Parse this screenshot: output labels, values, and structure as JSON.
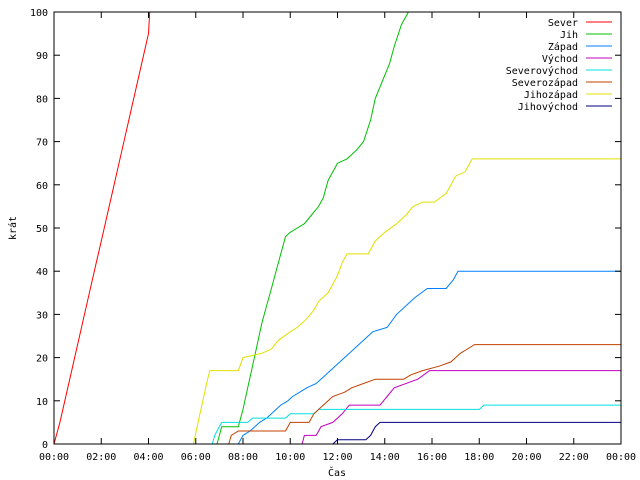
{
  "chart_data": {
    "type": "line",
    "title": "",
    "xlabel": "Čas",
    "ylabel": "krát",
    "xlim": [
      0,
      24
    ],
    "ylim": [
      0,
      100
    ],
    "x_ticks": [
      "00:00",
      "02:00",
      "04:00",
      "06:00",
      "08:00",
      "10:00",
      "12:00",
      "14:00",
      "16:00",
      "18:00",
      "20:00",
      "22:00",
      "00:00"
    ],
    "y_ticks": [
      "0",
      "10",
      "20",
      "30",
      "40",
      "50",
      "60",
      "70",
      "80",
      "90",
      "100"
    ],
    "grid": false,
    "legend_position": "top-right",
    "x_unit": "hours since 00:00",
    "series": [
      {
        "name": "Sever",
        "color": "#ff0000",
        "points": [
          [
            0,
            0
          ],
          [
            0.25,
            5
          ],
          [
            0.5,
            11
          ],
          [
            0.75,
            17
          ],
          [
            1,
            23
          ],
          [
            1.25,
            29
          ],
          [
            1.5,
            35
          ],
          [
            1.75,
            41
          ],
          [
            2,
            47
          ],
          [
            2.25,
            53
          ],
          [
            2.5,
            59
          ],
          [
            2.75,
            65
          ],
          [
            3,
            71
          ],
          [
            3.25,
            77
          ],
          [
            3.5,
            83
          ],
          [
            3.75,
            89
          ],
          [
            4,
            95
          ],
          [
            4.05,
            100
          ]
        ]
      },
      {
        "name": "Jih",
        "color": "#00c000",
        "points": [
          [
            0,
            0
          ],
          [
            6.9,
            0
          ],
          [
            7.0,
            2
          ],
          [
            7.1,
            4
          ],
          [
            7.8,
            4
          ],
          [
            8.0,
            8
          ],
          [
            8.2,
            13
          ],
          [
            8.4,
            18
          ],
          [
            8.6,
            23
          ],
          [
            8.8,
            28
          ],
          [
            9.0,
            32
          ],
          [
            9.2,
            36
          ],
          [
            9.5,
            42
          ],
          [
            9.8,
            48
          ],
          [
            10.0,
            49
          ],
          [
            10.3,
            50
          ],
          [
            10.6,
            51
          ],
          [
            10.9,
            53
          ],
          [
            11.2,
            55
          ],
          [
            11.4,
            57
          ],
          [
            11.6,
            61
          ],
          [
            12.0,
            65
          ],
          [
            12.4,
            66
          ],
          [
            12.8,
            68
          ],
          [
            13.1,
            70
          ],
          [
            13.4,
            75
          ],
          [
            13.6,
            80
          ],
          [
            13.9,
            84
          ],
          [
            14.2,
            88
          ],
          [
            14.4,
            92
          ],
          [
            14.7,
            97
          ],
          [
            15.0,
            100
          ]
        ]
      },
      {
        "name": "Západ",
        "color": "#0080ff",
        "points": [
          [
            0,
            0
          ],
          [
            7.8,
            0
          ],
          [
            8.0,
            2
          ],
          [
            8.3,
            3
          ],
          [
            8.5,
            4
          ],
          [
            8.7,
            5
          ],
          [
            9.0,
            6
          ],
          [
            9.2,
            7
          ],
          [
            9.4,
            8
          ],
          [
            9.6,
            9
          ],
          [
            9.9,
            10
          ],
          [
            10.1,
            11
          ],
          [
            10.4,
            12
          ],
          [
            10.7,
            13
          ],
          [
            11.1,
            14
          ],
          [
            11.5,
            16
          ],
          [
            11.9,
            18
          ],
          [
            12.3,
            20
          ],
          [
            12.7,
            22
          ],
          [
            13.1,
            24
          ],
          [
            13.5,
            26
          ],
          [
            14.1,
            27
          ],
          [
            14.5,
            30
          ],
          [
            14.9,
            32
          ],
          [
            15.3,
            34
          ],
          [
            15.8,
            36
          ],
          [
            16.6,
            36
          ],
          [
            16.9,
            38
          ],
          [
            17.1,
            40
          ],
          [
            24,
            40
          ]
        ]
      },
      {
        "name": "Východ",
        "color": "#c000c0",
        "points": [
          [
            0,
            0
          ],
          [
            10.5,
            0
          ],
          [
            10.6,
            2
          ],
          [
            11.1,
            2
          ],
          [
            11.3,
            4
          ],
          [
            11.8,
            5
          ],
          [
            12.2,
            7
          ],
          [
            12.5,
            9
          ],
          [
            13.8,
            9
          ],
          [
            14.1,
            11
          ],
          [
            14.4,
            13
          ],
          [
            15.4,
            15
          ],
          [
            15.9,
            17
          ],
          [
            24,
            17
          ]
        ]
      },
      {
        "name": "Severovýchod",
        "color": "#00e0e0",
        "points": [
          [
            0,
            0
          ],
          [
            6.7,
            0
          ],
          [
            6.8,
            2
          ],
          [
            6.9,
            3
          ],
          [
            7.1,
            5
          ],
          [
            8.2,
            5
          ],
          [
            8.4,
            6
          ],
          [
            9.8,
            6
          ],
          [
            10.0,
            7
          ],
          [
            11.0,
            7
          ],
          [
            11.2,
            8
          ],
          [
            18.0,
            8
          ],
          [
            18.2,
            9
          ],
          [
            24,
            9
          ]
        ]
      },
      {
        "name": "Severozápad",
        "color": "#c04000",
        "points": [
          [
            0,
            0
          ],
          [
            7.4,
            0
          ],
          [
            7.5,
            2
          ],
          [
            7.8,
            3
          ],
          [
            9.8,
            3
          ],
          [
            10.0,
            5
          ],
          [
            10.8,
            5
          ],
          [
            11.0,
            7
          ],
          [
            11.4,
            9
          ],
          [
            11.8,
            11
          ],
          [
            12.3,
            12
          ],
          [
            12.6,
            13
          ],
          [
            13.1,
            14
          ],
          [
            13.6,
            15
          ],
          [
            14.8,
            15
          ],
          [
            15.1,
            16
          ],
          [
            15.6,
            17
          ],
          [
            16.3,
            18
          ],
          [
            16.8,
            19
          ],
          [
            17.2,
            21
          ],
          [
            17.5,
            22
          ],
          [
            17.8,
            23
          ],
          [
            24,
            23
          ]
        ]
      },
      {
        "name": "Jihozápad",
        "color": "#e0e000",
        "points": [
          [
            0,
            0
          ],
          [
            5.9,
            0
          ],
          [
            6.1,
            5
          ],
          [
            6.3,
            10
          ],
          [
            6.5,
            15
          ],
          [
            6.6,
            17
          ],
          [
            7.8,
            17
          ],
          [
            8.0,
            20
          ],
          [
            8.8,
            21
          ],
          [
            9.2,
            22
          ],
          [
            9.5,
            24
          ],
          [
            10.0,
            26
          ],
          [
            10.3,
            27
          ],
          [
            10.7,
            29
          ],
          [
            11.0,
            31
          ],
          [
            11.2,
            33
          ],
          [
            11.6,
            35
          ],
          [
            11.8,
            37
          ],
          [
            12.0,
            39
          ],
          [
            12.2,
            42
          ],
          [
            12.4,
            44
          ],
          [
            13.3,
            44
          ],
          [
            13.6,
            47
          ],
          [
            14.0,
            49
          ],
          [
            14.5,
            51
          ],
          [
            14.9,
            53
          ],
          [
            15.2,
            55
          ],
          [
            15.6,
            56
          ],
          [
            16.1,
            56
          ],
          [
            16.6,
            58
          ],
          [
            17.0,
            62
          ],
          [
            17.4,
            63
          ],
          [
            17.7,
            66
          ],
          [
            24,
            66
          ]
        ]
      },
      {
        "name": "Jihovýchod",
        "color": "#000080",
        "points": [
          [
            0,
            0
          ],
          [
            11.8,
            0
          ],
          [
            12.0,
            1
          ],
          [
            13.2,
            1
          ],
          [
            13.4,
            2
          ],
          [
            13.6,
            4
          ],
          [
            13.8,
            5
          ],
          [
            24,
            5
          ]
        ]
      }
    ]
  }
}
